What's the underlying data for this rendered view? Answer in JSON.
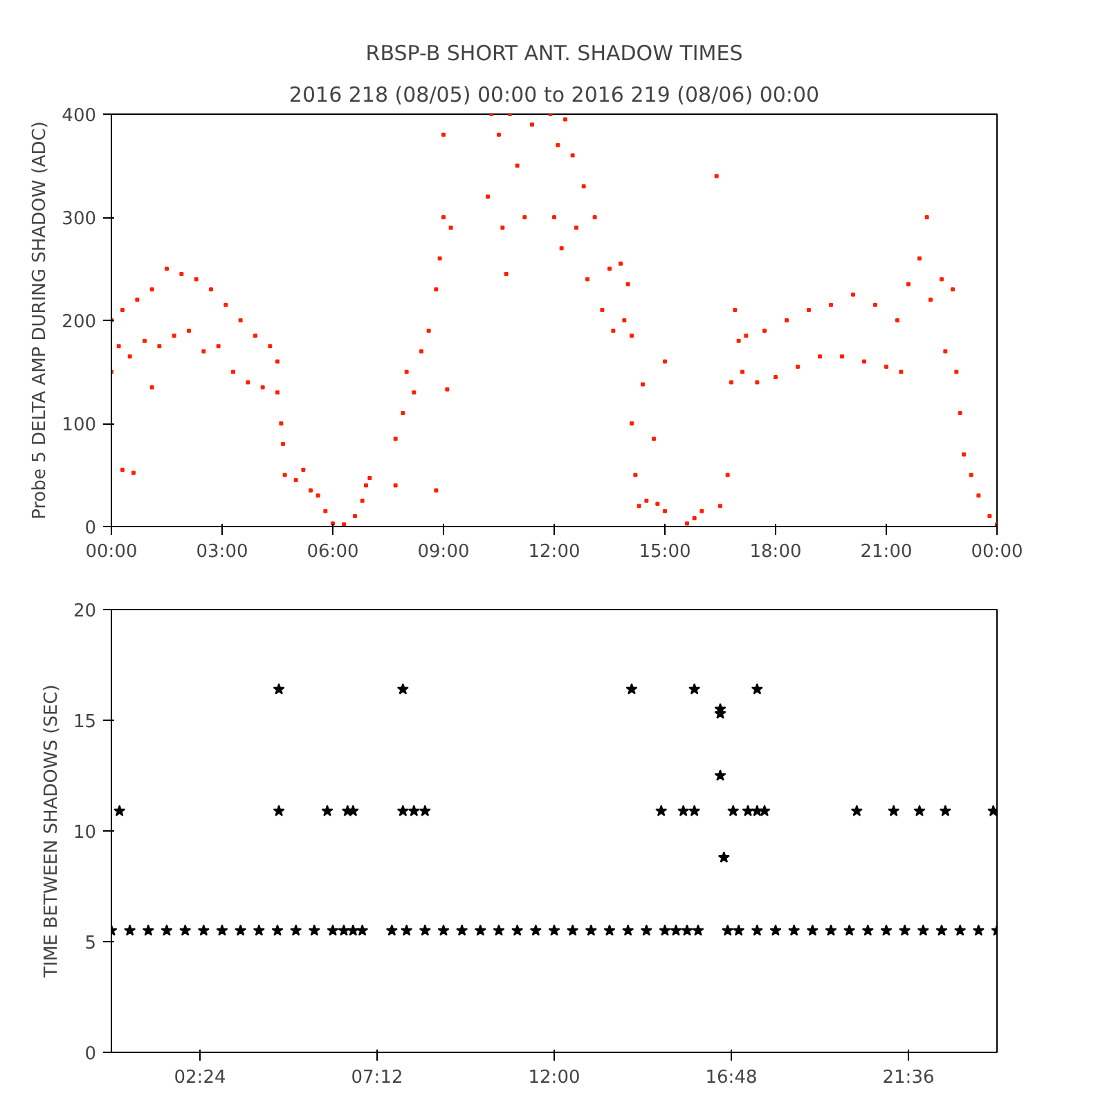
{
  "chart_data": [
    {
      "type": "scatter",
      "title": "RBSP-B SHORT ANT. SHADOW TIMES",
      "subtitle": "2016 218 (08/05) 00:00 to 2016 219 (08/06) 00:00",
      "ylabel": "Probe 5 DELTA AMP DURING SHADOW (ADC)",
      "marker": "square",
      "grid": false,
      "xlim": [
        0,
        24
      ],
      "ylim": [
        0,
        400
      ],
      "xticks": [
        {
          "value": 0,
          "label": "00:00"
        },
        {
          "value": 3,
          "label": "03:00"
        },
        {
          "value": 6,
          "label": "06:00"
        },
        {
          "value": 9,
          "label": "09:00"
        },
        {
          "value": 12,
          "label": "12:00"
        },
        {
          "value": 15,
          "label": "15:00"
        },
        {
          "value": 18,
          "label": "18:00"
        },
        {
          "value": 21,
          "label": "21:00"
        },
        {
          "value": 24,
          "label": "00:00"
        }
      ],
      "yticks": [
        0,
        100,
        200,
        300,
        400
      ],
      "series": [
        {
          "color": "#ff2000",
          "x": [
            0,
            0,
            0.2,
            0.3,
            0.5,
            0.7,
            0.9,
            1.1,
            1.3,
            1.5,
            1.7,
            1.9,
            2.1,
            2.3,
            2.5,
            2.7,
            2.9,
            3.1,
            3.3,
            3.5,
            3.7,
            3.9,
            4.1,
            4.3,
            4.5,
            4.5,
            0.3,
            0.6,
            1.1,
            4.6,
            4.65,
            4.7,
            5.0,
            5.2,
            5.4,
            5.6,
            5.8,
            6.0,
            6.3,
            6.6,
            6.8,
            6.9,
            7.0,
            7.7,
            7.7,
            7.9,
            8.0,
            8.2,
            8.4,
            8.6,
            8.8,
            8.9,
            9.0,
            9.0,
            9.1,
            9.2,
            8.8,
            10.2,
            10.3,
            10.5,
            10.6,
            10.8,
            11.0,
            11.2,
            11.4,
            10.7,
            11.9,
            12.0,
            12.1,
            12.2,
            12.3,
            12.5,
            12.6,
            12.8,
            12.9,
            13.1,
            13.3,
            13.5,
            13.6,
            13.8,
            13.9,
            14.0,
            14.1,
            14.1,
            14.2,
            14.3,
            14.5,
            14.8,
            15.0,
            14.4,
            14.7,
            15.0,
            15.6,
            15.8,
            16.0,
            16.4,
            16.5,
            16.7,
            16.8,
            16.9,
            17.0,
            17.1,
            17.2,
            17.5,
            17.7,
            18.0,
            18.3,
            18.6,
            18.9,
            19.2,
            19.5,
            19.8,
            20.1,
            20.4,
            20.7,
            21.0,
            21.3,
            21.4,
            21.6,
            21.9,
            22.1,
            22.2,
            22.5,
            22.6,
            22.8,
            22.9,
            23.0,
            23.1,
            23.3,
            23.5,
            23.8,
            24
          ],
          "values": [
            150,
            200,
            175,
            210,
            165,
            220,
            180,
            230,
            175,
            250,
            185,
            245,
            190,
            240,
            170,
            230,
            175,
            215,
            150,
            200,
            140,
            185,
            135,
            175,
            160,
            130,
            55,
            52,
            135,
            100,
            80,
            50,
            45,
            55,
            35,
            30,
            15,
            3,
            2,
            10,
            25,
            40,
            47,
            85,
            40,
            110,
            150,
            130,
            170,
            190,
            230,
            260,
            300,
            380,
            133,
            290,
            35,
            320,
            400,
            380,
            290,
            400,
            350,
            300,
            390,
            245,
            400,
            300,
            370,
            270,
            395,
            360,
            290,
            330,
            240,
            300,
            210,
            250,
            190,
            255,
            200,
            235,
            185,
            100,
            50,
            20,
            25,
            22,
            15,
            138,
            85,
            160,
            3,
            8,
            15,
            340,
            20,
            50,
            140,
            210,
            180,
            150,
            185,
            140,
            190,
            145,
            200,
            155,
            210,
            165,
            215,
            165,
            225,
            160,
            215,
            155,
            200,
            150,
            235,
            260,
            300,
            220,
            240,
            170,
            230,
            150,
            110,
            70,
            50,
            30,
            10,
            2
          ]
        }
      ]
    },
    {
      "type": "scatter",
      "ylabel": "TIME BETWEEN SHADOWS (SEC)",
      "marker": "star",
      "grid": false,
      "xlim": [
        0,
        24
      ],
      "ylim": [
        0,
        20
      ],
      "xticks": [
        {
          "value": 2.4,
          "label": "02:24"
        },
        {
          "value": 7.2,
          "label": "07:12"
        },
        {
          "value": 12,
          "label": "12:00"
        },
        {
          "value": 16.8,
          "label": "16:48"
        },
        {
          "value": 21.6,
          "label": "21:36"
        }
      ],
      "yticks": [
        0,
        5,
        10,
        15,
        20
      ],
      "series": [
        {
          "color": "#000000",
          "x": [
            0,
            0.5,
            1,
            1.5,
            2,
            2.5,
            3,
            3.5,
            4,
            4.5,
            5,
            5.5,
            6,
            6.3,
            6.55,
            6.8,
            7.6,
            8,
            8.5,
            9,
            9.5,
            10,
            10.5,
            11,
            11.5,
            12,
            12.5,
            13,
            13.5,
            14,
            14.5,
            15,
            15.3,
            15.6,
            15.9,
            16.7,
            17,
            17.5,
            18,
            18.5,
            19,
            19.5,
            20,
            20.5,
            21,
            21.5,
            22,
            22.5,
            23,
            23.5,
            24,
            0.22,
            4.54,
            4.54,
            5.85,
            6.4,
            6.55,
            7.9,
            7.9,
            8.2,
            8.5,
            14.1,
            14.9,
            15.5,
            15.8,
            15.8,
            16.5,
            16.5,
            16.5,
            16.6,
            16.85,
            17.25,
            17.5,
            17.7,
            17.5,
            20.2,
            21.2,
            21.9,
            22.6,
            23.9
          ],
          "values": [
            5.5,
            5.5,
            5.5,
            5.5,
            5.5,
            5.5,
            5.5,
            5.5,
            5.5,
            5.5,
            5.5,
            5.5,
            5.5,
            5.5,
            5.5,
            5.5,
            5.5,
            5.5,
            5.5,
            5.5,
            5.5,
            5.5,
            5.5,
            5.5,
            5.5,
            5.5,
            5.5,
            5.5,
            5.5,
            5.5,
            5.5,
            5.5,
            5.5,
            5.5,
            5.5,
            5.5,
            5.5,
            5.5,
            5.5,
            5.5,
            5.5,
            5.5,
            5.5,
            5.5,
            5.5,
            5.5,
            5.5,
            5.5,
            5.5,
            5.5,
            5.5,
            10.9,
            16.4,
            10.9,
            10.9,
            10.9,
            10.9,
            16.4,
            10.9,
            10.9,
            10.9,
            16.4,
            10.9,
            10.9,
            10.9,
            16.4,
            15.3,
            15.5,
            12.5,
            8.8,
            10.9,
            10.9,
            10.9,
            10.9,
            16.4,
            10.9,
            10.9,
            10.9,
            10.9,
            10.9
          ]
        }
      ]
    }
  ]
}
